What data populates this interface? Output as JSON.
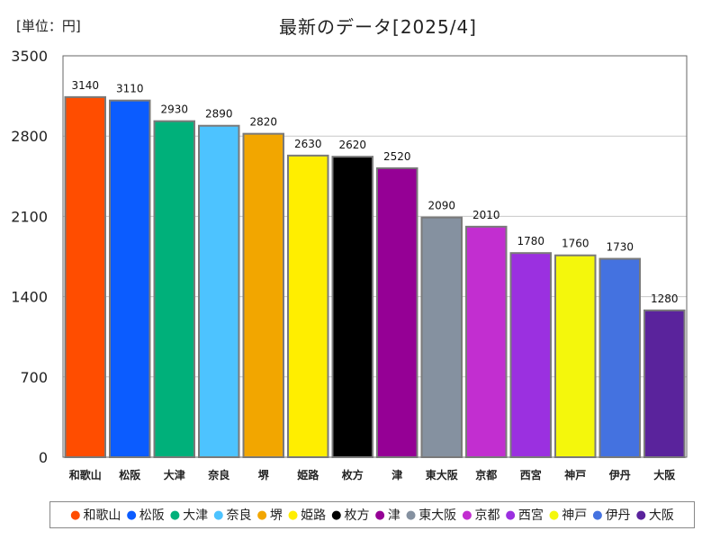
{
  "header": {
    "unit_label": "[単位：円]",
    "title": "最新のデータ[2025/4]"
  },
  "chart_data": {
    "type": "bar",
    "title": "最新のデータ[2025/4]",
    "unit": "円",
    "categories": [
      "和歌山",
      "松阪",
      "大津",
      "奈良",
      "堺",
      "姫路",
      "枚方",
      "津",
      "東大阪",
      "京都",
      "西宮",
      "神戸",
      "伊丹",
      "大阪"
    ],
    "values": [
      3140,
      3110,
      2930,
      2890,
      2820,
      2630,
      2620,
      2520,
      2090,
      2010,
      1780,
      1760,
      1730,
      1280
    ],
    "value_labels": [
      "3140",
      "3110",
      "2930",
      "2890",
      "2820",
      "2630",
      "2620",
      "2520",
      "2090",
      "2010",
      "1780",
      "1760",
      "1730",
      "1280"
    ],
    "colors": [
      "#ff4d00",
      "#0b5cff",
      "#00b07a",
      "#4dc3ff",
      "#f2a600",
      "#ffee00",
      "#000000",
      "#950095",
      "#8591a0",
      "#c22ed0",
      "#9b30e0",
      "#f4f70c",
      "#4472e0",
      "#5a239c"
    ],
    "yticks": [
      0,
      700,
      1400,
      2100,
      2800,
      3500
    ],
    "ytick_labels": [
      "0",
      "700",
      "1400",
      "2100",
      "2800",
      "3500"
    ],
    "ylim": [
      0,
      3500
    ],
    "grid": true,
    "legend_position": "bottom"
  }
}
